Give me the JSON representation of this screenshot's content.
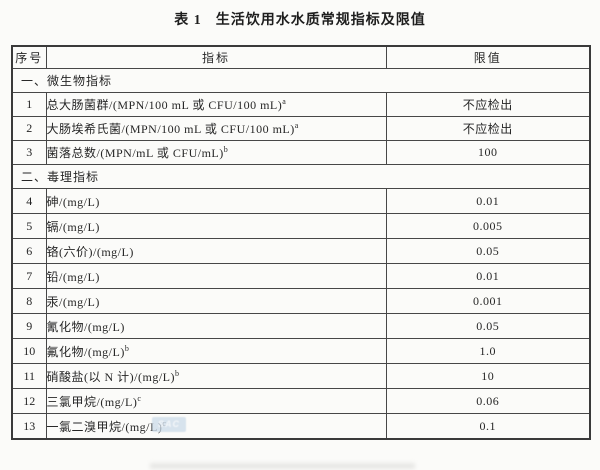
{
  "title": {
    "label": "表 1",
    "text": "生活饮用水水质常规指标及限值"
  },
  "table": {
    "headers": {
      "no": "序号",
      "indicator": "指标",
      "limit": "限值"
    },
    "sections": [
      {
        "title": "一、微生物指标",
        "rows": [
          {
            "no": "1",
            "indicator": "总大肠菌群/(MPN/100 mL 或 CFU/100 mL)",
            "sup": "a",
            "limit": "不应检出"
          },
          {
            "no": "2",
            "indicator": "大肠埃希氏菌/(MPN/100 mL 或 CFU/100 mL)",
            "sup": "a",
            "limit": "不应检出"
          },
          {
            "no": "3",
            "indicator": "菌落总数/(MPN/mL 或 CFU/mL)",
            "sup": "b",
            "limit": "100"
          }
        ]
      },
      {
        "title": "二、毒理指标",
        "rows": [
          {
            "no": "4",
            "indicator": "砷/(mg/L)",
            "sup": "",
            "limit": "0.01"
          },
          {
            "no": "5",
            "indicator": "镉/(mg/L)",
            "sup": "",
            "limit": "0.005"
          },
          {
            "no": "6",
            "indicator": "铬(六价)/(mg/L)",
            "sup": "",
            "limit": "0.05"
          },
          {
            "no": "7",
            "indicator": "铅/(mg/L)",
            "sup": "",
            "limit": "0.01"
          },
          {
            "no": "8",
            "indicator": "汞/(mg/L)",
            "sup": "",
            "limit": "0.001"
          },
          {
            "no": "9",
            "indicator": "氰化物/(mg/L)",
            "sup": "",
            "limit": "0.05"
          },
          {
            "no": "10",
            "indicator": "氟化物/(mg/L)",
            "sup": "b",
            "limit": "1.0"
          },
          {
            "no": "11",
            "indicator": "硝酸盐(以 N 计)/(mg/L)",
            "sup": "b",
            "limit": "10"
          },
          {
            "no": "12",
            "indicator": "三氯甲烷/(mg/L)",
            "sup": "c",
            "limit": "0.06"
          },
          {
            "no": "13",
            "indicator": "一氯二溴甲烷/(mg/L)",
            "sup": "c",
            "limit": "0.1"
          }
        ]
      }
    ]
  },
  "watermark": {
    "text": "SAC"
  }
}
